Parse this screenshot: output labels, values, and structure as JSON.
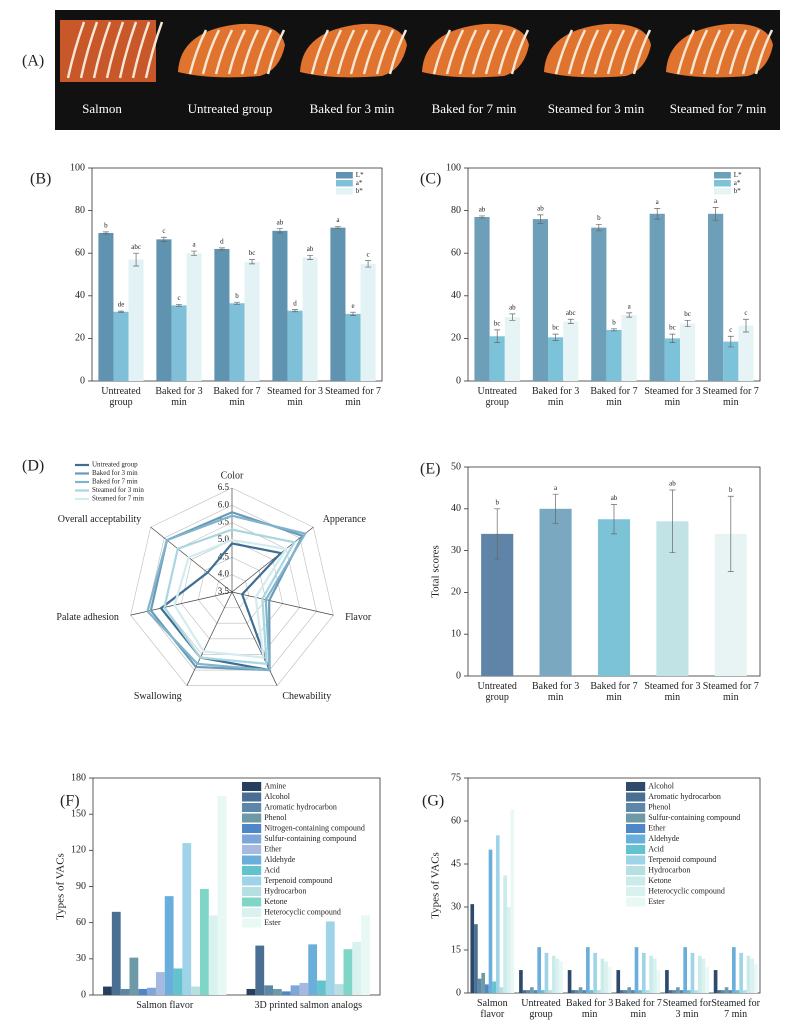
{
  "panel_a": {
    "label": "(A)",
    "captions": [
      "Salmon",
      "Untreated group",
      "Baked for 3 min",
      "Baked for 7 min",
      "Steamed for 3 min",
      "Steamed for 7 min"
    ]
  },
  "chart_data": [
    {
      "type": "bar",
      "panel": "(B)",
      "categories": [
        "Untreated group",
        "Baked for 3 min",
        "Baked for 7 min",
        "Steamed for 3 min",
        "Steamed for 7 min"
      ],
      "series": [
        {
          "name": "L*",
          "color": "#5f93b0",
          "values": [
            69.5,
            66.5,
            62,
            70.5,
            72
          ],
          "errors": [
            0.5,
            1,
            0.5,
            1,
            0.5
          ],
          "letters": [
            "b",
            "c",
            "d",
            "ab",
            "a"
          ]
        },
        {
          "name": "a*",
          "color": "#7fc0d8",
          "values": [
            32.5,
            35.5,
            36.5,
            33,
            31.5
          ],
          "errors": [
            0.3,
            0.5,
            0.5,
            0.5,
            0.8
          ],
          "letters": [
            "de",
            "c",
            "b",
            "d",
            "e"
          ]
        },
        {
          "name": "b*",
          "color": "#e3f2f5",
          "values": [
            57,
            60,
            56,
            58,
            55
          ],
          "errors": [
            3,
            1,
            1,
            1,
            1.5
          ],
          "letters": [
            "abc",
            "a",
            "bc",
            "ab",
            "c"
          ]
        }
      ],
      "ylim": [
        0,
        100
      ],
      "yticks": [
        0,
        20,
        40,
        60,
        80,
        100
      ],
      "legend": "upper right"
    },
    {
      "type": "bar",
      "panel": "(C)",
      "categories": [
        "Untreated group",
        "Baked for 3 min",
        "Baked for 7 min",
        "Steamed for 3 min",
        "Steamed for 7 min"
      ],
      "series": [
        {
          "name": "L*",
          "color": "#6e9fb8",
          "values": [
            77,
            76,
            72,
            78.5,
            78.5
          ],
          "errors": [
            0.5,
            2,
            1.5,
            2.5,
            3
          ],
          "letters": [
            "ab",
            "ab",
            "b",
            "a",
            "a"
          ]
        },
        {
          "name": "a*",
          "color": "#7cc3da",
          "values": [
            21,
            20.5,
            24,
            20,
            18.5
          ],
          "errors": [
            3,
            1.5,
            0.5,
            2,
            2.5
          ],
          "letters": [
            "bc",
            "bc",
            "b",
            "bc",
            "c"
          ]
        },
        {
          "name": "b*",
          "color": "#e6f4f6",
          "values": [
            30,
            28,
            31,
            27,
            26
          ],
          "errors": [
            1.5,
            1,
            1,
            1.5,
            3
          ],
          "letters": [
            "ab",
            "abc",
            "a",
            "bc",
            "c"
          ]
        }
      ],
      "ylim": [
        0,
        100
      ],
      "yticks": [
        0,
        20,
        40,
        60,
        80,
        100
      ],
      "legend": "upper right"
    },
    {
      "type": "radar",
      "panel": "(D)",
      "axes": [
        "Color",
        "Apperance",
        "Flavor",
        "Chewability",
        "Swallowing",
        "Palate adhesion",
        "Overall acceptability"
      ],
      "rlim": [
        3.5,
        6.5
      ],
      "rticks": [
        3.5,
        {
          "value": 4,
          "label": "4.0"
        },
        4.5,
        {
          "value": 5,
          "label": "5.0"
        },
        5.5,
        {
          "value": 6,
          "label": "6.0"
        },
        6.5
      ],
      "series": [
        {
          "name": "Untreated group",
          "color": "#3f6e94",
          "values": [
            4.9,
            5.3,
            3.8,
            6.0,
            5.6,
            5.6,
            4.4
          ]
        },
        {
          "name": "Baked for 3 min",
          "color": "#6a9ab7",
          "values": [
            5.8,
            6.1,
            4.6,
            6.0,
            5.9,
            5.9,
            5.9
          ]
        },
        {
          "name": "Baked for 7 min",
          "color": "#7fb4cc",
          "values": [
            5.7,
            6.2,
            4.5,
            6.0,
            5.8,
            6.0,
            5.9
          ]
        },
        {
          "name": "Steamed for 3 min",
          "color": "#a9d6df",
          "values": [
            5.3,
            5.8,
            4.4,
            5.8,
            5.6,
            5.5,
            5.5
          ]
        },
        {
          "name": "Steamed for 7 min",
          "color": "#d4ecef",
          "values": [
            5.0,
            5.5,
            4.2,
            5.6,
            5.4,
            5.2,
            5.1
          ]
        }
      ],
      "legend": "upper left"
    },
    {
      "type": "bar",
      "panel": "(E)",
      "ylabel": "Total scores",
      "categories": [
        "Untreated group",
        "Baked for 3 min",
        "Baked for 7 min",
        "Steamed for 3 min",
        "Steamed for 7 min"
      ],
      "values": [
        34,
        40,
        37.5,
        37,
        34
      ],
      "errors": [
        6,
        3.5,
        3.5,
        7.5,
        9
      ],
      "letters": [
        "b",
        "a",
        "ab",
        "ab",
        "b"
      ],
      "colors": [
        "#5f84a8",
        "#7aa8c0",
        "#7cc3d8",
        "#c2e3e6",
        "#e8f4f4"
      ],
      "ylim": [
        0,
        50
      ],
      "yticks": [
        0,
        10,
        20,
        30,
        40,
        50
      ]
    },
    {
      "type": "bar",
      "panel": "(F)",
      "ylabel": "Types of VACs",
      "categories": [
        "Salmon flavor",
        "3D printed salmon analogs"
      ],
      "series": [
        {
          "name": "Amine",
          "color": "#263f5e",
          "values": [
            7,
            5
          ]
        },
        {
          "name": "Alcohol",
          "color": "#4a6f93",
          "values": [
            69,
            41
          ]
        },
        {
          "name": "Aromatic hydrocarbon",
          "color": "#5d87a8",
          "values": [
            5,
            8
          ]
        },
        {
          "name": "Phenol",
          "color": "#6e9aa8",
          "values": [
            31,
            5
          ]
        },
        {
          "name": "Nitrogen-containing compound",
          "color": "#4f86c6",
          "values": [
            5,
            3
          ]
        },
        {
          "name": "Sulfur-containing compound",
          "color": "#7ea6d8",
          "values": [
            6,
            8
          ]
        },
        {
          "name": "Ether",
          "color": "#a7b9e0",
          "values": [
            19,
            10
          ]
        },
        {
          "name": "Aldehyde",
          "color": "#6aaedc",
          "values": [
            82,
            42
          ]
        },
        {
          "name": "Acid",
          "color": "#62c3cf",
          "values": [
            22,
            12
          ]
        },
        {
          "name": "Terpenoid compound",
          "color": "#9fd4e8",
          "values": [
            126,
            61
          ]
        },
        {
          "name": "Hydrocarbon",
          "color": "#b5dfe0",
          "values": [
            7,
            9
          ]
        },
        {
          "name": "Ketone",
          "color": "#7fd6c6",
          "values": [
            88,
            38
          ]
        },
        {
          "name": "Heterocyclic compound",
          "color": "#d9f1ef",
          "values": [
            66,
            44
          ]
        },
        {
          "name": "Ester",
          "color": "#e8f8f5",
          "values": [
            165,
            66
          ]
        }
      ],
      "ylim": [
        0,
        180
      ],
      "yticks": [
        0,
        30,
        60,
        90,
        120,
        150,
        180
      ],
      "legend": "upper right"
    },
    {
      "type": "bar",
      "panel": "(G)",
      "ylabel": "Types of VACs",
      "categories": [
        "Salmon flavor",
        "Untreated group",
        "Baked for 3 min",
        "Baked for 7 min",
        "Steamed for 3 min",
        "Steamed for 7 min"
      ],
      "series": [
        {
          "name": "Alcohol",
          "color": "#2d4a6b",
          "values": [
            31,
            8,
            8,
            8,
            8,
            8
          ]
        },
        {
          "name": "Aromatic hydrocarbon",
          "color": "#4a6f93",
          "values": [
            24,
            1,
            1,
            1,
            1,
            1
          ]
        },
        {
          "name": "Phenol",
          "color": "#5d87a8",
          "values": [
            5,
            1,
            1,
            1,
            1,
            1
          ]
        },
        {
          "name": "Sulfur-containing compound",
          "color": "#6e9aa8",
          "values": [
            7,
            2,
            2,
            2,
            2,
            2
          ]
        },
        {
          "name": "Ether",
          "color": "#4f86c6",
          "values": [
            3,
            1,
            1,
            1,
            1,
            1
          ]
        },
        {
          "name": "Aldehyde",
          "color": "#6aaedc",
          "values": [
            50,
            16,
            16,
            16,
            16,
            16
          ]
        },
        {
          "name": "Acid",
          "color": "#62c3cf",
          "values": [
            4,
            1,
            1,
            1,
            1,
            1
          ]
        },
        {
          "name": "Terpenoid compound",
          "color": "#9fd4e8",
          "values": [
            55,
            14,
            14,
            14,
            14,
            14
          ]
        },
        {
          "name": "Hydrocarbon",
          "color": "#b5dfe0",
          "values": [
            2,
            1,
            1,
            1,
            1,
            1
          ]
        },
        {
          "name": "Ketone",
          "color": "#c9ebea",
          "values": [
            41,
            13,
            12,
            13,
            13,
            13
          ]
        },
        {
          "name": "Heterocyclic compound",
          "color": "#d9f1ef",
          "values": [
            30,
            12,
            11,
            12,
            12,
            12
          ]
        },
        {
          "name": "Ester",
          "color": "#e8f8f5",
          "values": [
            64,
            11,
            9,
            8,
            9,
            10
          ]
        }
      ],
      "ylim": [
        0,
        75
      ],
      "yticks": [
        0,
        15,
        30,
        45,
        60,
        75
      ],
      "legend": "upper right"
    }
  ]
}
